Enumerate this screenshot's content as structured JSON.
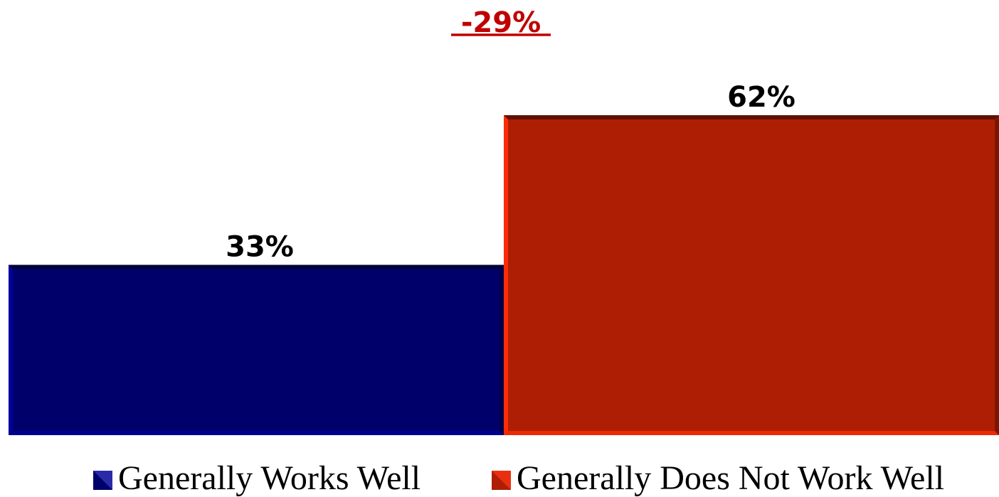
{
  "chart_data": {
    "type": "bar",
    "difference_label": "-29%",
    "categories": [
      "Generally Works Well",
      "Generally Does Not Work Well"
    ],
    "values": [
      33,
      62
    ],
    "data_labels": [
      "33%",
      "62%"
    ],
    "colors": [
      "#00006b",
      "#ae1e04"
    ],
    "ylim": [
      0,
      80
    ],
    "grid": false,
    "legend_position": "bottom"
  }
}
